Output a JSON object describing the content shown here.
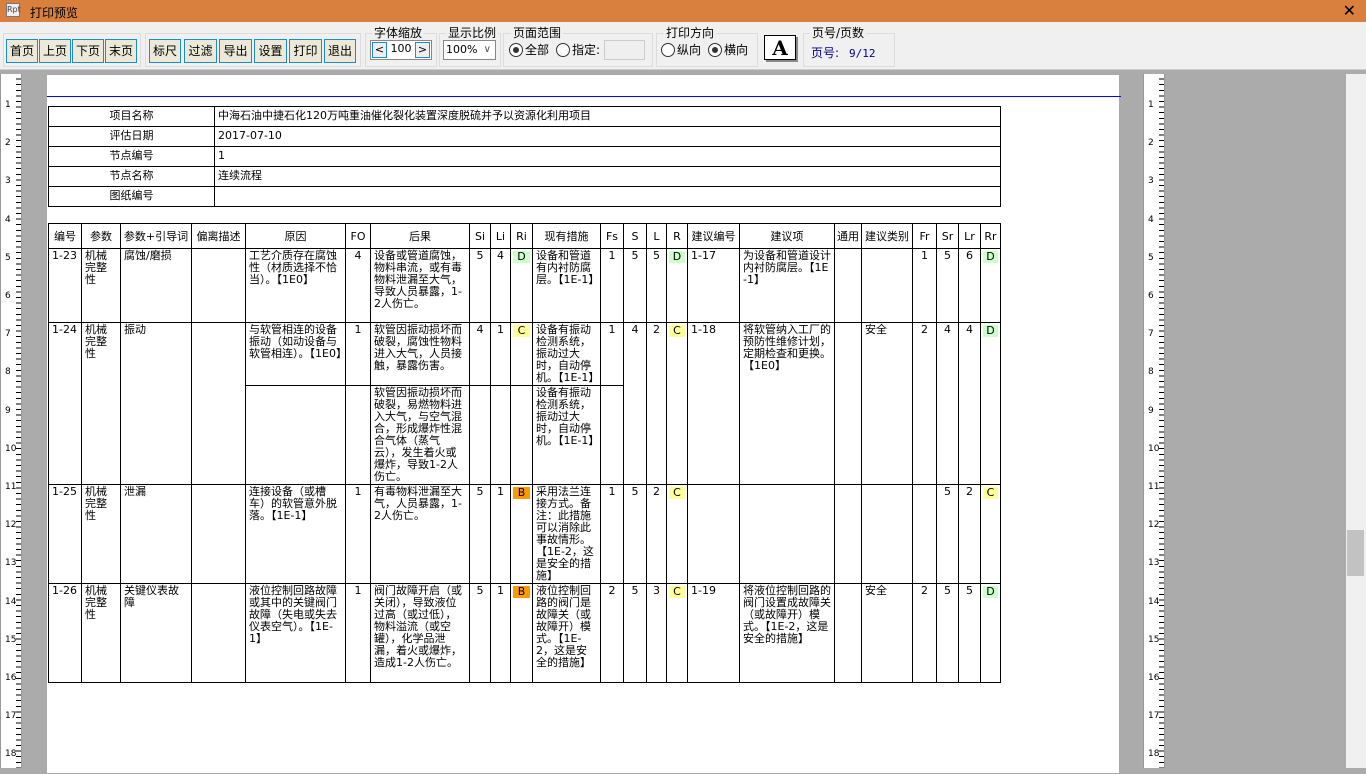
{
  "window": {
    "title": "打印预览",
    "close": "✕",
    "app_icon": "Rpt"
  },
  "toolbar": {
    "nav": [
      "首页",
      "上页",
      "下页",
      "末页"
    ],
    "tools": [
      "标尺",
      "过滤",
      "导出",
      "设置",
      "打印",
      "退出"
    ],
    "font_zoom": {
      "label": "字体缩放",
      "value": "100",
      "dec": "<",
      "inc": ">"
    },
    "display_ratio": {
      "label": "显示比例",
      "value": "100%"
    },
    "page_range": {
      "label": "页面范围",
      "all": "全部",
      "specified": "指定:",
      "selected": "all"
    },
    "orientation": {
      "label": "打印方向",
      "portrait": "纵向",
      "landscape": "横向",
      "selected": "landscape",
      "icon": "A"
    },
    "page_info": {
      "label": "页号/页数",
      "prefix": "页号:",
      "value": "9/12"
    }
  },
  "ruler": {
    "numbers": [
      "1",
      "2",
      "3",
      "4",
      "5",
      "6",
      "7",
      "8",
      "9",
      "10",
      "11",
      "12",
      "13",
      "14",
      "15",
      "16",
      "17",
      "18"
    ]
  },
  "info": [
    {
      "k": "项目名称",
      "v": "中海石油中捷石化120万吨重油催化裂化装置深度脱硫并予以资源化利用项目"
    },
    {
      "k": "评估日期",
      "v": "2017-07-10"
    },
    {
      "k": "节点编号",
      "v": "1"
    },
    {
      "k": "节点名称",
      "v": "连续流程"
    },
    {
      "k": "图纸编号",
      "v": ""
    }
  ],
  "headers": [
    "编号",
    "参数",
    "参数+引导词",
    "偏离描述",
    "原因",
    "FO",
    "后果",
    "Si",
    "Li",
    "Ri",
    "现有措施",
    "Fs",
    "S",
    "L",
    "R",
    "建议编号",
    "建议项",
    "通用",
    "建议类别",
    "Fr",
    "Sr",
    "Lr",
    "Rr"
  ],
  "rows": [
    {
      "id": "1-23",
      "param": "机械完整性",
      "guide": "腐蚀/磨损",
      "dev": "",
      "cause": "工艺介质存在腐蚀性（材质选择不恰当）。【1E0】",
      "fo": "4",
      "cons": "设备或管道腐蚀，物料串流，或有毒物料泄漏至大气，导致人员暴露，1-2人伤亡。",
      "si": "5",
      "li": "4",
      "ri": "D",
      "meas": "设备和管道有内衬防腐层。【1E-1】",
      "fs": "1",
      "s": "5",
      "l": "5",
      "r": "D",
      "rec_no": "1-17",
      "rec": "为设备和管道设计内衬防腐层。【1E-1】",
      "gen": "",
      "cat": "",
      "fr": "1",
      "sr": "5",
      "lr": "6",
      "rr": "D"
    },
    {
      "id": "1-24",
      "param": "机械完整性",
      "guide": "振动",
      "dev": "",
      "cause": "与软管相连的设备振动（如动设备与软管相连）。【1E0】",
      "fo": "1",
      "cons": "软管因振动损坏而破裂，腐蚀性物料进入大气，人员接触，暴露伤害。",
      "si": "4",
      "li": "1",
      "ri": "C",
      "meas": "设备有振动检测系统，振动过大时，自动停机。【1E-1】",
      "fs": "1",
      "s": "4",
      "l": "2",
      "r": "C",
      "rec_no": "1-18",
      "rec": "将软管纳入工厂的预防性维修计划，定期检查和更换。【1E0】",
      "gen": "",
      "cat": "安全",
      "fr": "2",
      "sr": "4",
      "lr": "4",
      "rr": "D",
      "sub": {
        "cause": "",
        "fo": "",
        "cons": "软管因振动损坏而破裂，易燃物料进入大气，与空气混合，形成爆炸性混合气体（蒸气云），发生着火或爆炸，导致1-2人伤亡。",
        "si": "",
        "li": "",
        "ri": "",
        "meas": "设备有振动检测系统，振动过大时，自动停机。【1E-1】",
        "fs": ""
      }
    },
    {
      "id": "1-25",
      "param": "机械完整性",
      "guide": "泄漏",
      "dev": "",
      "cause": "连接设备（或槽车）的软管意外脱落。【1E-1】",
      "fo": "1",
      "cons": "有毒物料泄漏至大气，人员暴露，1-2人伤亡。",
      "si": "5",
      "li": "1",
      "ri": "B",
      "meas": "采用法兰连接方式。备注：此措施可以消除此事故情形。【1E-2，这是安全的措施】",
      "fs": "1",
      "s": "5",
      "l": "2",
      "r": "C",
      "rec_no": "",
      "rec": "",
      "gen": "",
      "cat": "",
      "fr": "",
      "sr": "5",
      "lr": "2",
      "rr": "C"
    },
    {
      "id": "1-26",
      "param": "机械完整性",
      "guide": "关键仪表故障",
      "dev": "",
      "cause": "液位控制回路故障或其中的关键阀门故障（失电或失去仪表空气）。【1E-1】",
      "fo": "1",
      "cons": "阀门故障开启（或关闭），导致液位过高（或过低），物料溢流（或空罐），化学品泄漏，着火或爆炸，造成1-2人伤亡。",
      "si": "5",
      "li": "1",
      "ri": "B",
      "meas": "液位控制回路的阀门是故障关（或故障开）模式。【1E-2，这是安全的措施】",
      "fs": "2",
      "s": "5",
      "l": "3",
      "r": "C",
      "rec_no": "1-19",
      "rec": "将液位控制回路的阀门设置成故障关（或故障开）模式。【1E-2，这是安全的措施】",
      "gen": "",
      "cat": "安全",
      "fr": "2",
      "sr": "5",
      "lr": "5",
      "rr": "D"
    }
  ],
  "colors": {
    "D": "#ccffcc",
    "C": "#ffff99",
    "B": "#ff9900",
    "titlebar": "#d9803f",
    "button_border": "#1c8ccf"
  }
}
